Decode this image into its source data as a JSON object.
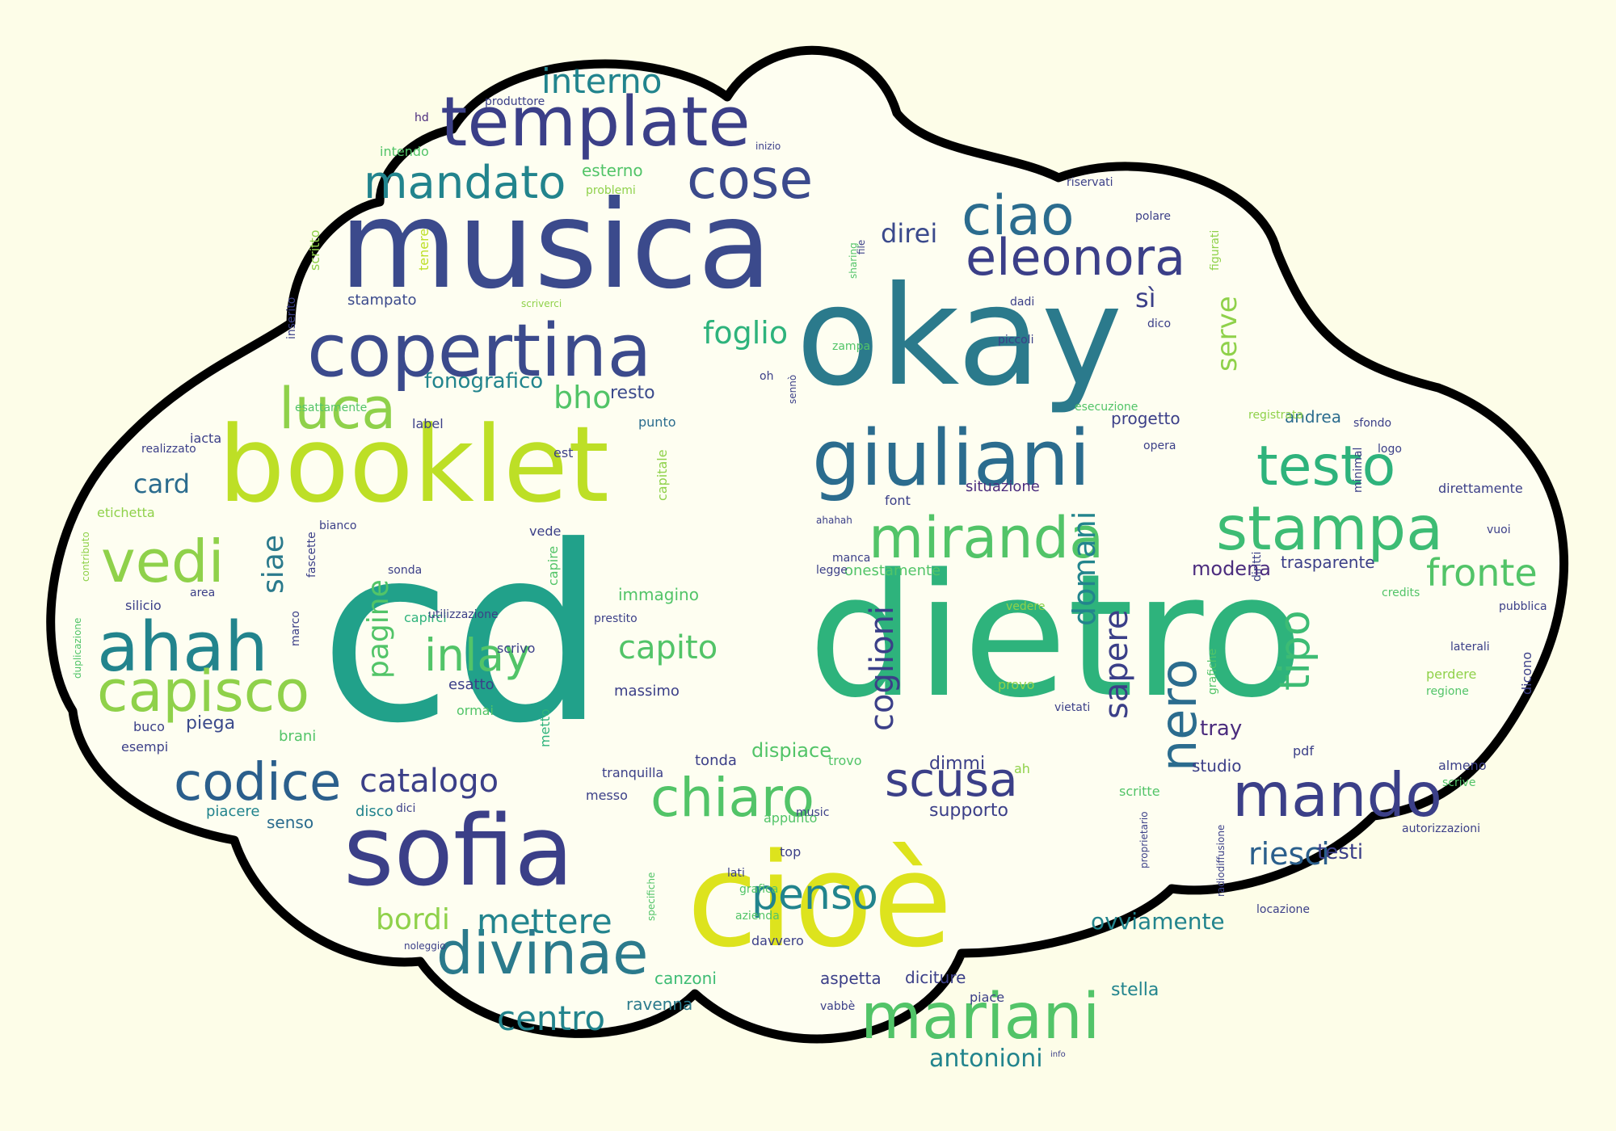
{
  "palette": {
    "background": "#fdfde8",
    "cloud_fill": "#fefef1",
    "cloud_outline": "#000000",
    "word_colors": [
      "#3b3f88",
      "#4b2c7e",
      "#2b5f8c",
      "#22848d",
      "#21a18a",
      "#2eb37c",
      "#52c468",
      "#8fd14a",
      "#bddf26",
      "#dde31d"
    ]
  },
  "words": [
    {
      "text": "cd",
      "color": "#21a18a",
      "size": 300
    },
    {
      "text": "dietro",
      "color": "#2eb37c",
      "size": 210
    },
    {
      "text": "okay",
      "color": "#2b7a8c",
      "size": 170
    },
    {
      "text": "cioè",
      "color": "#dde31d",
      "size": 160
    },
    {
      "text": "musica",
      "color": "#3b4a8c",
      "size": 150
    },
    {
      "text": "booklet",
      "color": "#bddf26",
      "size": 130
    },
    {
      "text": "sofia",
      "color": "#3b3f88",
      "size": 120
    },
    {
      "text": "giuliani",
      "color": "#2b6c8e",
      "size": 95
    },
    {
      "text": "copertina",
      "color": "#3b4a8c",
      "size": 90
    },
    {
      "text": "template",
      "color": "#3b3f88",
      "size": 85
    },
    {
      "text": "ahah",
      "color": "#22848d",
      "size": 85
    },
    {
      "text": "mariani",
      "color": "#52c468",
      "size": 78
    },
    {
      "text": "stampa",
      "color": "#3dbc74",
      "size": 75
    },
    {
      "text": "mando",
      "color": "#3b3f88",
      "size": 75
    },
    {
      "text": "divinae",
      "color": "#2b7a8c",
      "size": 72
    },
    {
      "text": "vedi",
      "color": "#8fd14a",
      "size": 72
    },
    {
      "text": "capisco",
      "color": "#8fd14a",
      "size": 70
    },
    {
      "text": "miranda",
      "color": "#52c468",
      "size": 70
    },
    {
      "text": "luca",
      "color": "#8fd14a",
      "size": 70
    },
    {
      "text": "testo",
      "color": "#2eb37c",
      "size": 68
    },
    {
      "text": "cose",
      "color": "#3b4a8c",
      "size": 68
    },
    {
      "text": "ciao",
      "color": "#2b6c8e",
      "size": 68
    },
    {
      "text": "chiaro",
      "color": "#52c468",
      "size": 66
    },
    {
      "text": "codice",
      "color": "#2b5f8c",
      "size": 64
    },
    {
      "text": "eleonora",
      "color": "#3b3f88",
      "size": 62
    },
    {
      "text": "nero",
      "color": "#2b6c8e",
      "size": 62
    },
    {
      "text": "scusa",
      "color": "#3b3f88",
      "size": 58
    },
    {
      "text": "mandato",
      "color": "#22848d",
      "size": 56
    },
    {
      "text": "inlay",
      "color": "#52c468",
      "size": 55
    },
    {
      "text": "penso",
      "color": "#22848d",
      "size": 52
    },
    {
      "text": "tipo",
      "color": "#3dbc74",
      "size": 52
    },
    {
      "text": "fronte",
      "color": "#52c468",
      "size": 46
    },
    {
      "text": "interno",
      "color": "#22848d",
      "size": 42
    },
    {
      "text": "mettere",
      "color": "#22848d",
      "size": 42
    },
    {
      "text": "centro",
      "color": "#22848d",
      "size": 42
    },
    {
      "text": "catalogo",
      "color": "#3b3f88",
      "size": 40
    },
    {
      "text": "capito",
      "color": "#52c468",
      "size": 40
    },
    {
      "text": "sapere",
      "color": "#3b3f88",
      "size": 40
    },
    {
      "text": "coglioni",
      "color": "#3b3f88",
      "size": 40
    },
    {
      "text": "foglio",
      "color": "#2eb37c",
      "size": 38
    },
    {
      "text": "bho",
      "color": "#52c468",
      "size": 38
    },
    {
      "text": "riesci",
      "color": "#2b5f8c",
      "size": 38
    },
    {
      "text": "domani",
      "color": "#22848d",
      "size": 38
    },
    {
      "text": "bordi",
      "color": "#8fd14a",
      "size": 36
    },
    {
      "text": "pagine",
      "color": "#52c468",
      "size": 36
    },
    {
      "text": "siae",
      "color": "#2b7a8c",
      "size": 36
    },
    {
      "text": "serve",
      "color": "#8fd14a",
      "size": 34
    },
    {
      "text": "card",
      "color": "#2b6c8e",
      "size": 32
    },
    {
      "text": "direi",
      "color": "#3b4a8c",
      "size": 32
    },
    {
      "text": "sì",
      "color": "#3b3f88",
      "size": 32
    },
    {
      "text": "antonioni",
      "color": "#22848d",
      "size": 30
    },
    {
      "text": "ovviamente",
      "color": "#22848d",
      "size": 28
    },
    {
      "text": "fonografico",
      "color": "#22848d",
      "size": 26
    },
    {
      "text": "tray",
      "color": "#4b2c7e",
      "size": 26
    },
    {
      "text": "testi",
      "color": "#3b3f88",
      "size": 26
    },
    {
      "text": "modena",
      "color": "#4b2c7e",
      "size": 24
    },
    {
      "text": "dispiace",
      "color": "#52c468",
      "size": 24
    },
    {
      "text": "supporto",
      "color": "#3b3f88",
      "size": 22
    },
    {
      "text": "dimmi",
      "color": "#3b3f88",
      "size": 22
    },
    {
      "text": "stella",
      "color": "#22848d",
      "size": 22
    },
    {
      "text": "resto",
      "color": "#3b4a8c",
      "size": 22
    },
    {
      "text": "piega",
      "color": "#3b4a8c",
      "size": 22
    },
    {
      "text": "canzoni",
      "color": "#3dbc74",
      "size": 20
    },
    {
      "text": "ravenna",
      "color": "#2b7a8c",
      "size": 20
    },
    {
      "text": "diciture",
      "color": "#3b3f88",
      "size": 20
    },
    {
      "text": "aspetta",
      "color": "#3b3f88",
      "size": 20
    },
    {
      "text": "trasparente",
      "color": "#3b3f88",
      "size": 20
    },
    {
      "text": "andrea",
      "color": "#2b6c8e",
      "size": 20
    },
    {
      "text": "progetto",
      "color": "#3b3f88",
      "size": 20
    },
    {
      "text": "situazione",
      "color": "#4b2c7e",
      "size": 18
    },
    {
      "text": "onestamente",
      "color": "#52c468",
      "size": 18
    },
    {
      "text": "esterno",
      "color": "#52c468",
      "size": 20
    },
    {
      "text": "stampato",
      "color": "#3b4a8c",
      "size": 18
    },
    {
      "text": "immagino",
      "color": "#52c468",
      "size": 20
    },
    {
      "text": "massimo",
      "color": "#3b3f88",
      "size": 18
    },
    {
      "text": "esatto",
      "color": "#3b3f88",
      "size": 18
    },
    {
      "text": "studio",
      "color": "#3b3f88",
      "size": 20
    },
    {
      "text": "tonda",
      "color": "#3b3f88",
      "size": 18
    },
    {
      "text": "piacere",
      "color": "#22848d",
      "size": 18
    },
    {
      "text": "senso",
      "color": "#2b6c8e",
      "size": 20
    },
    {
      "text": "disco",
      "color": "#22848d",
      "size": 18
    },
    {
      "text": "brani",
      "color": "#52c468",
      "size": 18
    },
    {
      "text": "buco",
      "color": "#3b3f88",
      "size": 16
    },
    {
      "text": "esempi",
      "color": "#3b3f88",
      "size": 16
    },
    {
      "text": "silicio",
      "color": "#3b3f88",
      "size": 16
    },
    {
      "text": "etichetta",
      "color": "#8fd14a",
      "size": 16
    },
    {
      "text": "realizzato",
      "color": "#3b3f88",
      "size": 14
    },
    {
      "text": "iacta",
      "color": "#3b3f88",
      "size": 16
    },
    {
      "text": "esattamente",
      "color": "#52c468",
      "size": 14
    },
    {
      "text": "inserito",
      "color": "#3b3f88",
      "size": 14
    },
    {
      "text": "scritto",
      "color": "#8fd14a",
      "size": 16
    },
    {
      "text": "tenere",
      "color": "#bddf26",
      "size": 16
    },
    {
      "text": "intendo",
      "color": "#52c468",
      "size": 16
    },
    {
      "text": "produttore",
      "color": "#3b3f88",
      "size": 14
    },
    {
      "text": "problemi",
      "color": "#8fd14a",
      "size": 14
    },
    {
      "text": "hd",
      "color": "#4b2c7e",
      "size": 14
    },
    {
      "text": "label",
      "color": "#3b3f88",
      "size": 16
    },
    {
      "text": "punto",
      "color": "#2b6c8e",
      "size": 16
    },
    {
      "text": "est",
      "color": "#3b3f88",
      "size": 16
    },
    {
      "text": "capitale",
      "color": "#8fd14a",
      "size": 16
    },
    {
      "text": "font",
      "color": "#3b3f88",
      "size": 16
    },
    {
      "text": "vede",
      "color": "#3b3f88",
      "size": 16
    },
    {
      "text": "capire",
      "color": "#52c468",
      "size": 16
    },
    {
      "text": "capirci",
      "color": "#2eb37c",
      "size": 16
    },
    {
      "text": "sonda",
      "color": "#3b3f88",
      "size": 14
    },
    {
      "text": "prestito",
      "color": "#3b3f88",
      "size": 14
    },
    {
      "text": "scrivo",
      "color": "#3b3f88",
      "size": 16
    },
    {
      "text": "utilizzazione",
      "color": "#3b3f88",
      "size": 14
    },
    {
      "text": "ormai",
      "color": "#52c468",
      "size": 16
    },
    {
      "text": "metto",
      "color": "#2eb37c",
      "size": 16
    },
    {
      "text": "tranquilla",
      "color": "#3b3f88",
      "size": 16
    },
    {
      "text": "messo",
      "color": "#3b3f88",
      "size": 16
    },
    {
      "text": "dici",
      "color": "#3b3f88",
      "size": 14
    },
    {
      "text": "appunto",
      "color": "#52c468",
      "size": 16
    },
    {
      "text": "trovo",
      "color": "#52c468",
      "size": 16
    },
    {
      "text": "music",
      "color": "#3b3f88",
      "size": 14
    },
    {
      "text": "top",
      "color": "#3b3f88",
      "size": 16
    },
    {
      "text": "lati",
      "color": "#3b3f88",
      "size": 14
    },
    {
      "text": "grafica",
      "color": "#52c468",
      "size": 14
    },
    {
      "text": "azienda",
      "color": "#52c468",
      "size": 14
    },
    {
      "text": "davvero",
      "color": "#3b3f88",
      "size": 16
    },
    {
      "text": "vabbè",
      "color": "#3b3f88",
      "size": 14
    },
    {
      "text": "piace",
      "color": "#3b3f88",
      "size": 16
    },
    {
      "text": "scritte",
      "color": "#52c468",
      "size": 16
    },
    {
      "text": "ah",
      "color": "#8fd14a",
      "size": 16
    },
    {
      "text": "pdf",
      "color": "#3b3f88",
      "size": 16
    },
    {
      "text": "almeno",
      "color": "#3b3f88",
      "size": 16
    },
    {
      "text": "scrive",
      "color": "#52c468",
      "size": 14
    },
    {
      "text": "autorizzazioni",
      "color": "#3b3f88",
      "size": 14
    },
    {
      "text": "dicono",
      "color": "#3b3f88",
      "size": 16
    },
    {
      "text": "regione",
      "color": "#52c468",
      "size": 14
    },
    {
      "text": "perdere",
      "color": "#8fd14a",
      "size": 16
    },
    {
      "text": "laterali",
      "color": "#3b3f88",
      "size": 14
    },
    {
      "text": "pubblica",
      "color": "#3b3f88",
      "size": 14
    },
    {
      "text": "credits",
      "color": "#52c468",
      "size": 14
    },
    {
      "text": "vuoi",
      "color": "#3b3f88",
      "size": 14
    },
    {
      "text": "direttamente",
      "color": "#3b3f88",
      "size": 16
    },
    {
      "text": "logo",
      "color": "#3b3f88",
      "size": 14
    },
    {
      "text": "sfondo",
      "color": "#3b3f88",
      "size": 14
    },
    {
      "text": "locazione",
      "color": "#3b3f88",
      "size": 14
    },
    {
      "text": "diritti",
      "color": "#3b3f88",
      "size": 14
    },
    {
      "text": "grafiche",
      "color": "#52c468",
      "size": 14
    },
    {
      "text": "minimal",
      "color": "#3b3f88",
      "size": 14
    },
    {
      "text": "registrata",
      "color": "#8fd14a",
      "size": 14
    },
    {
      "text": "opera",
      "color": "#3b3f88",
      "size": 14
    },
    {
      "text": "esecuzione",
      "color": "#52c468",
      "size": 14
    },
    {
      "text": "ahahah",
      "color": "#3b3f88",
      "size": 12
    },
    {
      "text": "manca",
      "color": "#3b3f88",
      "size": 14
    },
    {
      "text": "legge",
      "color": "#3b3f88",
      "size": 14
    },
    {
      "text": "vedere",
      "color": "#8fd14a",
      "size": 14
    },
    {
      "text": "provo",
      "color": "#8fd14a",
      "size": 16
    },
    {
      "text": "vietati",
      "color": "#3b3f88",
      "size": 14
    },
    {
      "text": "bianco",
      "color": "#3b3f88",
      "size": 14
    },
    {
      "text": "fascette",
      "color": "#3b3f88",
      "size": 14
    },
    {
      "text": "area",
      "color": "#3b3f88",
      "size": 14
    },
    {
      "text": "marco",
      "color": "#3b3f88",
      "size": 14
    },
    {
      "text": "riservati",
      "color": "#3b3f88",
      "size": 14
    },
    {
      "text": "polare",
      "color": "#3b3f88",
      "size": 14
    },
    {
      "text": "figurati",
      "color": "#8fd14a",
      "size": 14
    },
    {
      "text": "dadi",
      "color": "#3b3f88",
      "size": 14
    },
    {
      "text": "dico",
      "color": "#3b3f88",
      "size": 14
    },
    {
      "text": "piccoli",
      "color": "#3b3f88",
      "size": 14
    },
    {
      "text": "zampa",
      "color": "#52c468",
      "size": 14
    },
    {
      "text": "file",
      "color": "#3b3f88",
      "size": 12
    },
    {
      "text": "sharing",
      "color": "#52c468",
      "size": 12
    },
    {
      "text": "oh",
      "color": "#3b3f88",
      "size": 14
    },
    {
      "text": "sennò",
      "color": "#3b3f88",
      "size": 12
    },
    {
      "text": "inizio",
      "color": "#3b3f88",
      "size": 12
    },
    {
      "text": "scriverci",
      "color": "#8fd14a",
      "size": 12
    },
    {
      "text": "radiodiffusione",
      "color": "#3b3f88",
      "size": 12
    },
    {
      "text": "proprietario",
      "color": "#3b3f88",
      "size": 12
    },
    {
      "text": "specifiche",
      "color": "#52c468",
      "size": 12
    },
    {
      "text": "noleggio",
      "color": "#3b3f88",
      "size": 12
    },
    {
      "text": "duplicazione",
      "color": "#52c468",
      "size": 12
    },
    {
      "text": "contributo",
      "color": "#8fd14a",
      "size": 12
    },
    {
      "text": "info",
      "color": "#3b3f88",
      "size": 10
    }
  ]
}
